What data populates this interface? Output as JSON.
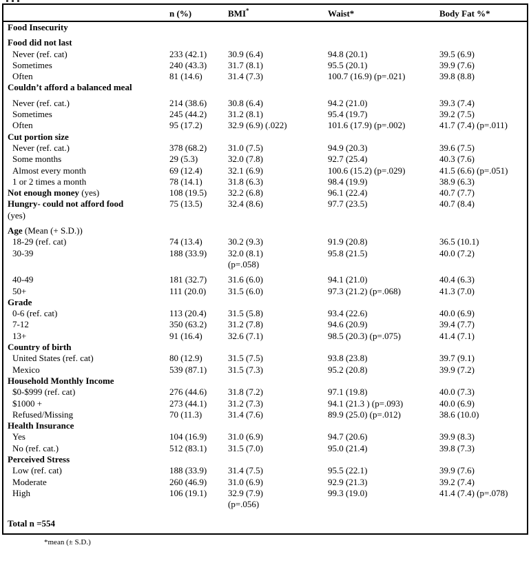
{
  "page": {
    "footnote": "*mean (± S.D.)"
  },
  "table": {
    "columns": [
      {
        "text": ""
      },
      {
        "text": "n (%)"
      },
      {
        "text": "BMI",
        "sup": "*"
      },
      {
        "text": "Waist*"
      },
      {
        "text": "Body Fat %*"
      }
    ],
    "rows": [
      {
        "label": "Food Insecurity",
        "bold": true
      },
      {
        "label": "Food did not last",
        "bold": true,
        "gap": 1
      },
      {
        "label": "Never (ref. cat)",
        "indent": true,
        "n": "233 (42.1)",
        "bmi": "30.9 (6.4)",
        "waist": "94.8 (20.1)",
        "fat": "39.5 (6.9)"
      },
      {
        "label": "Sometimes",
        "indent": true,
        "n": "240 (43.3)",
        "bmi": "31.7 (8.1)",
        "waist": "95.5 (20.1)",
        "fat": "39.9 (7.6)"
      },
      {
        "label": "Often",
        "indent": true,
        "n": "81 (14.6)",
        "bmi": "31.4 (7.3)",
        "waist": "100.7 (16.9) (p=.021)",
        "fat": "39.8 (8.8)"
      },
      {
        "label": "Couldn’t afford a balanced meal",
        "bold": true
      },
      {
        "label": "Never (ref. cat.)",
        "indent": true,
        "gap": 1,
        "n": "214 (38.6)",
        "bmi": "30.8 (6.4)",
        "waist": "94.2 (21.0)",
        "fat": "39.3 (7.4)"
      },
      {
        "label": "Sometimes",
        "indent": true,
        "n": "245 (44.2)",
        "bmi": "31.2 (8.1)",
        "waist": "95.4 (19.7)",
        "fat": "39.2 (7.5)"
      },
      {
        "label": "Often",
        "indent": true,
        "n": "95 (17.2)",
        "bmi": "32.9 (6.9) (.022)",
        "waist": "101.6 (17.9) (p=.002)",
        "fat": "41.7 (7.4) (p=.011)"
      },
      {
        "label": "Cut portion size",
        "bold": true
      },
      {
        "label": "Never (ref. cat.)",
        "indent": true,
        "n": "378 (68.2)",
        "bmi": "31.0 (7.5)",
        "waist": "94.9 (20.3)",
        "fat": "39.6 (7.5)"
      },
      {
        "label": "Some months",
        "indent": true,
        "n": "29 (5.3)",
        "bmi": "32.0 (7.8)",
        "waist": "92.7 (25.4)",
        "fat": "40.3 (7.6)"
      },
      {
        "label": "Almost every month",
        "indent": true,
        "n": "69 (12.4)",
        "bmi": "32.1 (6.9)",
        "waist": "100.6 (15.2) (p=.029)",
        "fat": "41.5 (6.6) (p=.051)"
      },
      {
        "label": "1 or 2 times a month",
        "indent": true,
        "n": "78 (14.1)",
        "bmi": "31.8 (6.3)",
        "waist": "98.4 (19.9)",
        "fat": "38.9 (6.3)"
      },
      {
        "label": "Not enough money",
        "bold": true,
        "suffix": "(yes)",
        "n": "108 (19.5)",
        "bmi": "32.2 (6.8)",
        "waist": "96.1 (22.4)",
        "fat": "40.7 (7.7)"
      },
      {
        "label": "Hungry- could not afford food",
        "bold": true,
        "n": "75 (13.5)",
        "bmi": "32.4 (8.6)",
        "waist": "97.7 (23.5)",
        "fat": "40.7 (8.4)"
      },
      {
        "label": "(yes)"
      },
      {
        "label": "Age",
        "bold": true,
        "suffix": "(Mean (+ S.D.))",
        "gap": 1
      },
      {
        "label": "18-29 (ref. cat)",
        "indent": true,
        "n": "74 (13.4)",
        "bmi": "30.2 (9.3)",
        "waist": "91.9 (20.8)",
        "fat": "36.5 (10.1)"
      },
      {
        "label": "30-39",
        "indent": true,
        "n": "188 (33.9)",
        "bmi": "32.0 (8.1)\n(p=.058)",
        "waist": "95.8 (21.5)",
        "fat": "40.0 (7.2)"
      },
      {
        "label": "40-49",
        "indent": true,
        "gap": 1,
        "n": "181 (32.7)",
        "bmi": "31.6 (6.0)",
        "waist": "94.1 (21.0)",
        "fat": "40.4 (6.3)"
      },
      {
        "label": "50+",
        "indent": true,
        "n": "111 (20.0)",
        "bmi": "31.5 (6.0)",
        "waist": "97.3 (21.2) (p=.068)",
        "fat": "41.3 (7.0)"
      },
      {
        "label": "Grade",
        "bold": true
      },
      {
        "label": "0-6 (ref. cat)",
        "indent": true,
        "n": "113 (20.4)",
        "bmi": "31.5 (5.8)",
        "waist": "93.4 (22.6)",
        "fat": "40.0 (6.9)"
      },
      {
        "label": "7-12",
        "indent": true,
        "n": "350 (63.2)",
        "bmi": "31.2 (7.8)",
        "waist": "94.6 (20.9)",
        "fat": "39.4 (7.7)"
      },
      {
        "label": "13+",
        "indent": true,
        "n": "91 (16.4)",
        "bmi": "32.6 (7.1)",
        "waist": "98.5 (20.3) (p=.075)",
        "fat": "41.4 (7.1)"
      },
      {
        "label": "Country of birth",
        "bold": true
      },
      {
        "label": "United States (ref. cat)",
        "indent": true,
        "n": "80 (12.9)",
        "bmi": "31.5 (7.5)",
        "waist": "93.8 (23.8)",
        "fat": "39.7 (9.1)"
      },
      {
        "label": "Mexico",
        "indent": true,
        "n": "539 (87.1)",
        "bmi": "31.5 (7.3)",
        "waist": "95.2 (20.8)",
        "fat": "39.9 (7.2)"
      },
      {
        "label": "Household Monthly Income",
        "bold": true
      },
      {
        "label": "$0-$999 (ref. cat)",
        "indent": true,
        "n": "276 (44.6)",
        "bmi": "31.8 (7.2)",
        "waist": "97.1 (19.8)",
        "fat": "40.0 (7.3)"
      },
      {
        "label": "$1000 +",
        "indent": true,
        "n": "273 (44.1)",
        "bmi": "31.2 (7.3)",
        "waist": "94.1 (21.3 ) (p=.093)",
        "fat": "40.0 (6.9)"
      },
      {
        "label": "Refused/Missing",
        "indent": true,
        "n": "70 (11.3)",
        "bmi": "31.4 (7.6)",
        "waist": "89.9 (25.0) (p=.012)",
        "fat": "38.6 (10.0)"
      },
      {
        "label": "Health Insurance",
        "bold": true
      },
      {
        "label": "Yes",
        "indent": true,
        "n": "104 (16.9)",
        "bmi": "31.0 (6.9)",
        "waist": "94.7 (20.6)",
        "fat": "39.9 (8.3)"
      },
      {
        "label": "No (ref. cat.)",
        "indent": true,
        "n": "512 (83.1)",
        "bmi": "31.5 (7.0)",
        "waist": "95.0 (21.4)",
        "fat": "39.8 (7.3)"
      },
      {
        "label": "Perceived Stress",
        "bold": true
      },
      {
        "label": "Low (ref. cat)",
        "indent": true,
        "n": "188 (33.9)",
        "bmi": "31.4 (7.5)",
        "waist": "95.5 (22.1)",
        "fat": "39.9 (7.6)"
      },
      {
        "label": "Moderate",
        "indent": true,
        "n": "260 (46.9)",
        "bmi": "31.0 (6.9)",
        "waist": "92.9 (21.3)",
        "fat": "39.2 (7.4)"
      },
      {
        "label": "High",
        "indent": true,
        "n": "106 (19.1)",
        "bmi": "32.9 (7.9)\n(p=.056)",
        "waist": "99.3 (19.0)",
        "fat": "41.4 (7.4) (p=.078)"
      },
      {
        "label": "Total n =554",
        "bold": true,
        "gap": 2
      }
    ]
  }
}
